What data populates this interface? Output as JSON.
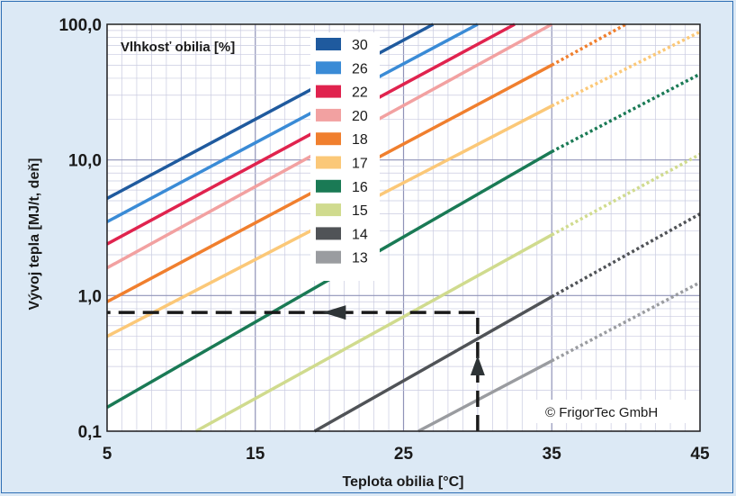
{
  "chart_data": {
    "type": "line",
    "title": "",
    "xlabel": "Teplota obilia [°C]",
    "ylabel": "Vývoj tepla [MJ/t, deň]",
    "legend_title": "Vlhkosť obilia [%]",
    "legend_position": "top-center",
    "credit": "© FrigorTec GmbH",
    "xlim": [
      5,
      45
    ],
    "ylim": [
      0.1,
      100
    ],
    "yscale": "log",
    "grid": true,
    "x_ticks": [
      "5",
      "15",
      "25",
      "35",
      "45"
    ],
    "x_tick_values": [
      5,
      15,
      25,
      35,
      45
    ],
    "y_ticks": [
      "0,1",
      "1,0",
      "10,0",
      "100,0"
    ],
    "y_tick_values": [
      0.1,
      1,
      10,
      100
    ],
    "solid_until_x": 35,
    "series": [
      {
        "name": "30",
        "color": "#1f5a9e",
        "points": [
          [
            5,
            5.2
          ],
          [
            27,
            100
          ]
        ]
      },
      {
        "name": "26",
        "color": "#3a8bd6",
        "points": [
          [
            5,
            3.5
          ],
          [
            30,
            100
          ]
        ]
      },
      {
        "name": "22",
        "color": "#e0234e",
        "points": [
          [
            5,
            2.4
          ],
          [
            32.5,
            100
          ]
        ]
      },
      {
        "name": "20",
        "color": "#f2a1a1",
        "points": [
          [
            5,
            1.6
          ],
          [
            35,
            100
          ]
        ]
      },
      {
        "name": "18",
        "color": "#f07f2e",
        "points": [
          [
            5,
            0.9
          ],
          [
            35,
            50
          ],
          [
            40,
            100
          ]
        ]
      },
      {
        "name": "17",
        "color": "#fbc878",
        "points": [
          [
            5,
            0.5
          ],
          [
            35,
            25
          ],
          [
            45,
            88
          ]
        ]
      },
      {
        "name": "16",
        "color": "#1a7a55",
        "points": [
          [
            5,
            0.15
          ],
          [
            35,
            11.5
          ],
          [
            45,
            43
          ]
        ]
      },
      {
        "name": "15",
        "color": "#d0db8e",
        "points": [
          [
            11,
            0.1
          ],
          [
            35,
            2.8
          ],
          [
            45,
            11
          ]
        ]
      },
      {
        "name": "14",
        "color": "#505357",
        "points": [
          [
            19,
            0.1
          ],
          [
            35,
            0.98
          ],
          [
            45,
            4
          ]
        ]
      },
      {
        "name": "13",
        "color": "#9a9ca0",
        "points": [
          [
            26,
            0.1
          ],
          [
            35,
            0.33
          ],
          [
            45,
            1.25
          ]
        ]
      }
    ],
    "annotation": {
      "type": "dashed-arrow-path",
      "points": [
        [
          30,
          0.1
        ],
        [
          30,
          0.75
        ],
        [
          5,
          0.75
        ]
      ],
      "color": "#1a1a1a"
    }
  }
}
